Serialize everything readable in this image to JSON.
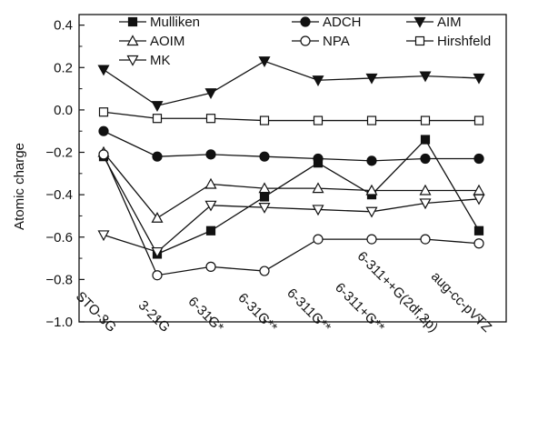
{
  "chart_data": {
    "type": "line",
    "title": "",
    "xlabel": "",
    "ylabel": "Atomic charge",
    "ylim": [
      -1.0,
      0.45
    ],
    "yticks": [
      -1.0,
      -0.8,
      -0.6,
      -0.4,
      -0.2,
      0.0,
      0.2,
      0.4
    ],
    "ytick_labels": [
      "−1.0",
      "−0.8",
      "−0.6",
      "−0.4",
      "−0.2",
      "0.0",
      "0.2",
      "0.4"
    ],
    "categories": [
      "STO-3G",
      "3-21G",
      "6-31G*",
      "6-31G**",
      "6-311G**",
      "6-311+G**",
      "6-311++G(2df,2p)",
      "aug-cc-pVTZ"
    ],
    "grid": false,
    "legend_position": "top",
    "series": [
      {
        "name": "Mulliken",
        "marker": "square-filled",
        "values": [
          -0.22,
          -0.68,
          -0.57,
          -0.41,
          -0.25,
          -0.4,
          -0.14,
          -0.57
        ]
      },
      {
        "name": "ADCH",
        "marker": "circle-filled",
        "values": [
          -0.1,
          -0.22,
          -0.21,
          -0.22,
          -0.23,
          -0.24,
          -0.23,
          -0.23
        ]
      },
      {
        "name": "AIM",
        "marker": "triangle-down-filled",
        "values": [
          0.19,
          0.02,
          0.08,
          0.23,
          0.14,
          0.15,
          0.16,
          0.15
        ]
      },
      {
        "name": "AOIM",
        "marker": "triangle-up-open",
        "values": [
          -0.2,
          -0.51,
          -0.35,
          -0.37,
          -0.37,
          -0.38,
          -0.38,
          -0.38
        ]
      },
      {
        "name": "NPA",
        "marker": "circle-open",
        "values": [
          -0.21,
          -0.78,
          -0.74,
          -0.76,
          -0.61,
          -0.61,
          -0.61,
          -0.63
        ]
      },
      {
        "name": "Hirshfeld",
        "marker": "square-open",
        "values": [
          -0.01,
          -0.04,
          -0.04,
          -0.05,
          -0.05,
          -0.05,
          -0.05,
          -0.05
        ]
      },
      {
        "name": "MK",
        "marker": "triangle-down-open",
        "values": [
          -0.59,
          -0.67,
          -0.45,
          -0.46,
          -0.47,
          -0.48,
          -0.44,
          -0.42
        ]
      }
    ]
  }
}
